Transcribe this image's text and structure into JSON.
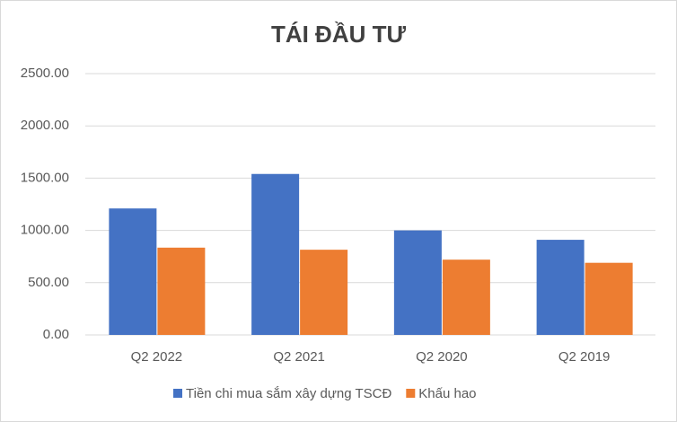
{
  "chart_data": {
    "type": "bar",
    "title": "TÁI ĐẦU TƯ",
    "categories": [
      "Q2 2022",
      "Q2 2021",
      "Q2 2020",
      "Q2 2019"
    ],
    "series": [
      {
        "name": "Tiền chi mua sắm xây dựng TSCĐ",
        "color": "#4472c4",
        "values": [
          1210,
          1540,
          1000,
          910
        ]
      },
      {
        "name": "Khấu hao",
        "color": "#ed7d31",
        "values": [
          835,
          815,
          720,
          690
        ]
      }
    ],
    "ylim": [
      0,
      2500
    ],
    "yticks": [
      {
        "value": 0,
        "label": "0.00"
      },
      {
        "value": 500,
        "label": "500.00"
      },
      {
        "value": 1000,
        "label": "1000.00"
      },
      {
        "value": 1500,
        "label": "1500.00"
      },
      {
        "value": 2000,
        "label": "2000.00"
      },
      {
        "value": 2500,
        "label": "2500.00"
      }
    ],
    "grid": true,
    "legend": "bottom"
  }
}
